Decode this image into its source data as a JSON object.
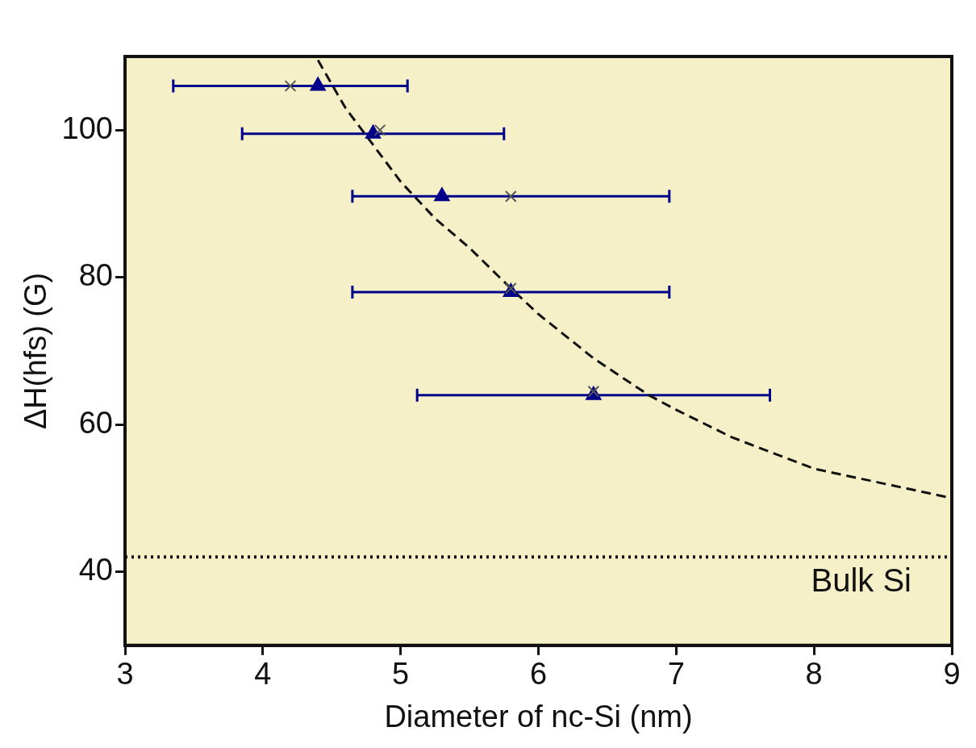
{
  "chart_data": {
    "type": "scatter",
    "xlabel": "Diameter of nc-Si (nm)",
    "ylabel": "ΔH(hfs) (G)",
    "xlim": [
      3,
      9
    ],
    "xticks": [
      3,
      4,
      5,
      6,
      7,
      8,
      9
    ],
    "ylim": [
      30,
      110
    ],
    "yticks": [
      40,
      60,
      80,
      100
    ],
    "grid": false,
    "series": [
      {
        "type": "line",
        "color": "#111111",
        "marker": "none",
        "line_style": "dashed",
        "x": [
          4.4,
          4.6,
          4.8,
          5.0,
          5.25,
          5.5,
          5.8,
          6.0,
          6.4,
          6.8,
          7.0,
          7.4,
          8.0,
          8.5,
          9.0
        ],
        "values": [
          109.5,
          103,
          98,
          93,
          88,
          84,
          78.5,
          75,
          69,
          64,
          62,
          58.3,
          54,
          52,
          50
        ]
      },
      {
        "type": "scatter",
        "color": "#555555",
        "marker": "cross",
        "x": [
          4.2,
          4.85,
          5.8,
          5.8,
          6.4
        ],
        "values": [
          106,
          100,
          91,
          78.5,
          64.5
        ]
      },
      {
        "type": "scatter",
        "color": "#00008b",
        "marker": "triangle",
        "x": [
          4.4,
          4.8,
          5.3,
          5.8,
          6.4
        ],
        "values": [
          106,
          99.5,
          91,
          78,
          64
        ],
        "xerrors": [
          [
            3.35,
            5.05
          ],
          [
            3.85,
            5.75
          ],
          [
            4.65,
            6.95
          ],
          [
            4.65,
            6.95
          ],
          [
            5.12,
            7.68
          ]
        ]
      }
    ],
    "ref_lines": [
      {
        "axis": "y",
        "value": 42,
        "label": "Bulk Si",
        "color": "#111111",
        "line_style": "dotted"
      }
    ]
  }
}
